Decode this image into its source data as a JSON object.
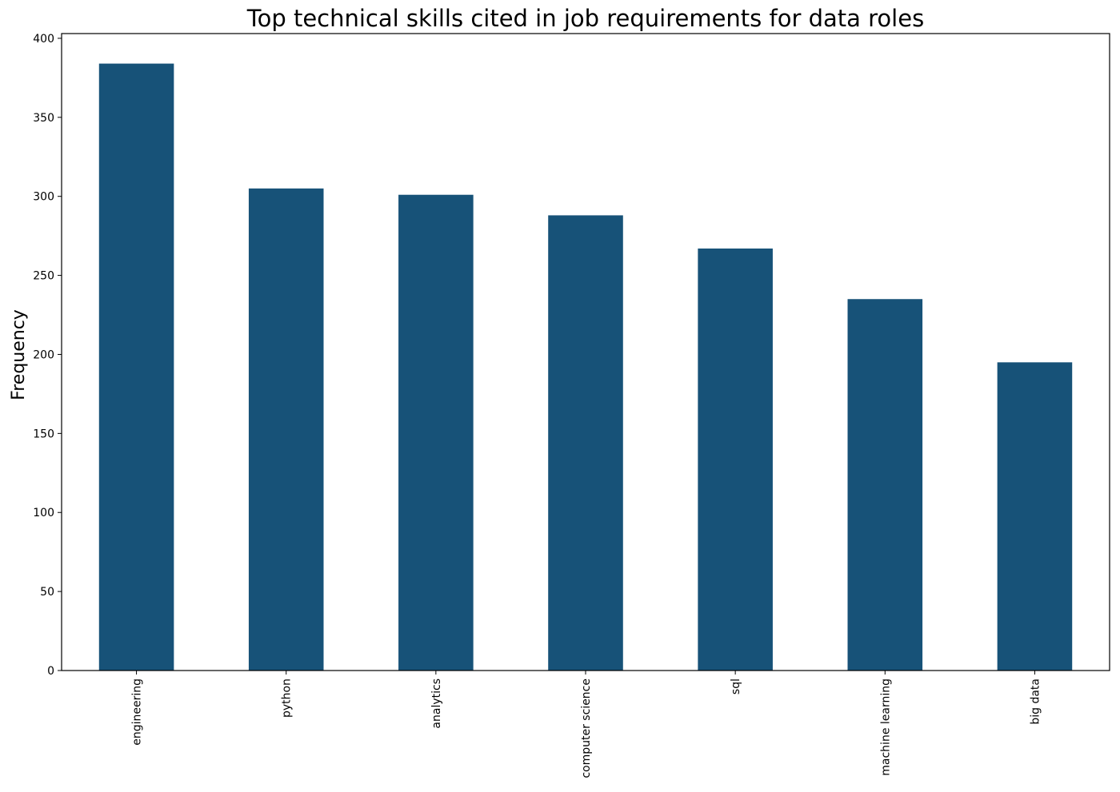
{
  "chart_data": {
    "type": "bar",
    "title": "Top technical skills cited in job requirements for data roles",
    "xlabel": "",
    "ylabel": "Frequency",
    "categories": [
      "engineering",
      "python",
      "analytics",
      "computer science",
      "sql",
      "machine learning",
      "big data"
    ],
    "values": [
      384,
      305,
      301,
      288,
      267,
      235,
      195
    ],
    "ylim": [
      0,
      403
    ],
    "yticks": [
      0,
      50,
      100,
      150,
      200,
      250,
      300,
      350,
      400
    ],
    "grid": false,
    "bar_color": "#175278"
  }
}
